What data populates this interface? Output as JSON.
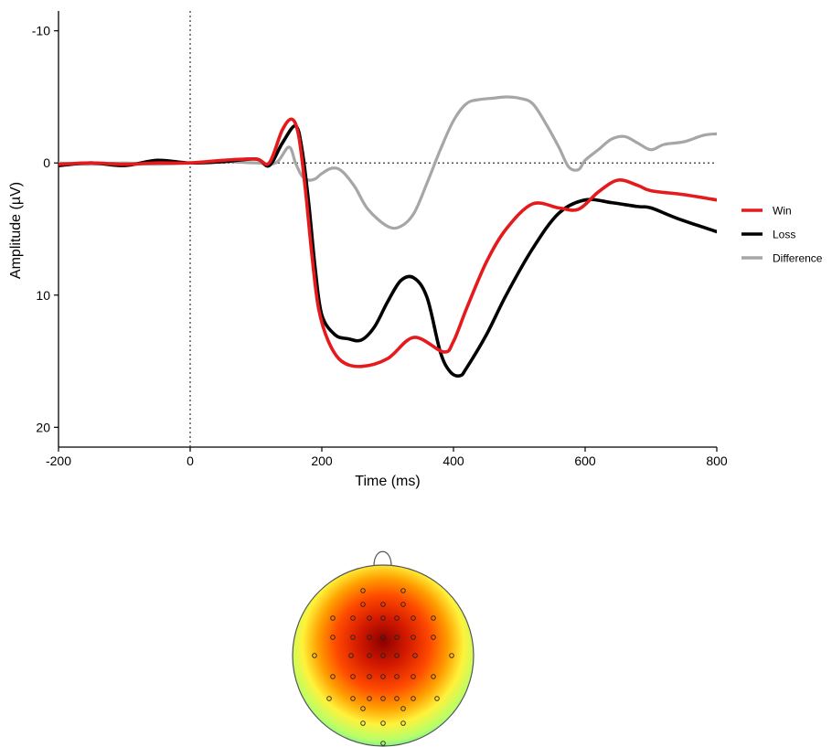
{
  "chart_data": {
    "type": "line",
    "xlabel": "Time (ms)",
    "ylabel": "Amplitude (µV)",
    "xlim": [
      -200,
      800
    ],
    "ylim": [
      -11.5,
      21.5
    ],
    "y_inverted": true,
    "xticks": [
      -200,
      0,
      200,
      400,
      600,
      800
    ],
    "yticks": [
      -10,
      0,
      10,
      20
    ],
    "reference_lines": [
      {
        "axis": "x",
        "value": 0,
        "style": "dotted"
      },
      {
        "axis": "y",
        "value": 0,
        "style": "dotted"
      }
    ],
    "legend_position": "right",
    "grid": false,
    "series": [
      {
        "name": "Win",
        "color": "#e41a1c",
        "x": [
          -200,
          -150,
          -100,
          -50,
          0,
          50,
          100,
          120,
          140,
          155,
          165,
          175,
          185,
          195,
          210,
          230,
          260,
          300,
          340,
          385,
          400,
          420,
          450,
          480,
          520,
          560,
          590,
          620,
          650,
          680,
          700,
          750,
          800
        ],
        "values": [
          0.1,
          0,
          0.1,
          0,
          0,
          -0.2,
          -0.3,
          0,
          -2.5,
          -3.3,
          -2,
          2,
          7,
          11,
          13.5,
          15,
          15.4,
          14.8,
          13.2,
          14.3,
          13.5,
          11,
          7.5,
          5,
          3.1,
          3.4,
          3.5,
          2.2,
          1.3,
          1.7,
          2.1,
          2.4,
          2.8
        ]
      },
      {
        "name": "Loss",
        "color": "#000000",
        "x": [
          -200,
          -150,
          -100,
          -50,
          0,
          50,
          100,
          120,
          140,
          160,
          170,
          180,
          190,
          200,
          220,
          240,
          260,
          280,
          300,
          320,
          340,
          360,
          380,
          395,
          410,
          420,
          450,
          480,
          520,
          560,
          600,
          640,
          680,
          700,
          740,
          800
        ],
        "values": [
          0.2,
          0,
          0.2,
          -0.2,
          0,
          -0.1,
          -0.3,
          0.2,
          -1.5,
          -2.8,
          -1,
          3,
          8,
          11.5,
          13,
          13.3,
          13.4,
          12.4,
          10.5,
          8.9,
          8.7,
          10.2,
          14.3,
          15.8,
          16.1,
          15.5,
          13,
          10,
          6.5,
          3.8,
          2.8,
          3,
          3.3,
          3.4,
          4.2,
          5.2
        ]
      },
      {
        "name": "Difference",
        "color": "#a6a6a6",
        "x": [
          -200,
          -150,
          -100,
          -50,
          0,
          50,
          100,
          130,
          150,
          160,
          170,
          180,
          190,
          200,
          215,
          230,
          250,
          270,
          300,
          320,
          340,
          360,
          380,
          400,
          420,
          440,
          460,
          480,
          500,
          520,
          540,
          560,
          575,
          590,
          600,
          620,
          640,
          660,
          680,
          700,
          720,
          750,
          780,
          800
        ],
        "values": [
          0,
          0.1,
          0,
          0.1,
          0,
          -0.1,
          0,
          0,
          -1.2,
          0,
          1,
          1.3,
          1.2,
          0.8,
          0.4,
          0.6,
          1.8,
          3.5,
          4.8,
          4.8,
          3.8,
          1.5,
          -1,
          -3.2,
          -4.5,
          -4.8,
          -4.9,
          -5,
          -4.9,
          -4.5,
          -3,
          -1.2,
          0.3,
          0.5,
          -0.2,
          -1,
          -1.8,
          -2,
          -1.5,
          -1,
          -1.4,
          -1.6,
          -2.1,
          -2.2
        ]
      }
    ]
  },
  "topomap": {
    "colors": {
      "center": "#8b0000",
      "mid": "#ff3b00",
      "warm": "#ff9900",
      "yellow": "#ffff33",
      "edge": "#2fd4c2"
    }
  }
}
